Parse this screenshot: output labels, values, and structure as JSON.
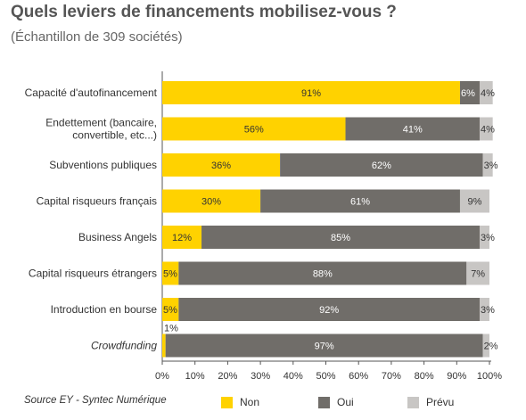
{
  "header": {
    "title": "Quels leviers de financements mobilisez-vous ?",
    "subtitle": "(Échantillon de 309 sociétés)"
  },
  "footer": {
    "source": "Source EY - Syntec Numérique"
  },
  "colors": {
    "Non": "#ffd200",
    "Oui": "#706d69",
    "Prévu": "#c8c6c4"
  },
  "chart_data": {
    "type": "bar",
    "orientation": "horizontal",
    "stacked": true,
    "categories": [
      "Capacité d'autofinancement",
      "Endettement (bancaire,\nconvertible, etc...)",
      "Subventions publiques",
      "Capital risqueurs français",
      "Business Angels",
      "Capital risqueurs étrangers",
      "Introduction en bourse",
      "Crowdfunding"
    ],
    "italic_categories": [
      "Crowdfunding"
    ],
    "series": [
      {
        "name": "Non",
        "values": [
          91,
          56,
          36,
          30,
          12,
          5,
          5,
          1
        ]
      },
      {
        "name": "Oui",
        "values": [
          6,
          41,
          62,
          61,
          85,
          88,
          92,
          97
        ]
      },
      {
        "name": "Prévu",
        "values": [
          4,
          4,
          3,
          9,
          3,
          7,
          3,
          2
        ]
      }
    ],
    "xlim": [
      0,
      100
    ],
    "xticks": [
      "0%",
      "10%",
      "20%",
      "30%",
      "40%",
      "50%",
      "60%",
      "70%",
      "80%",
      "90%",
      "100%"
    ],
    "value_format": "percent",
    "legend_position": "bottom",
    "grid": false
  }
}
